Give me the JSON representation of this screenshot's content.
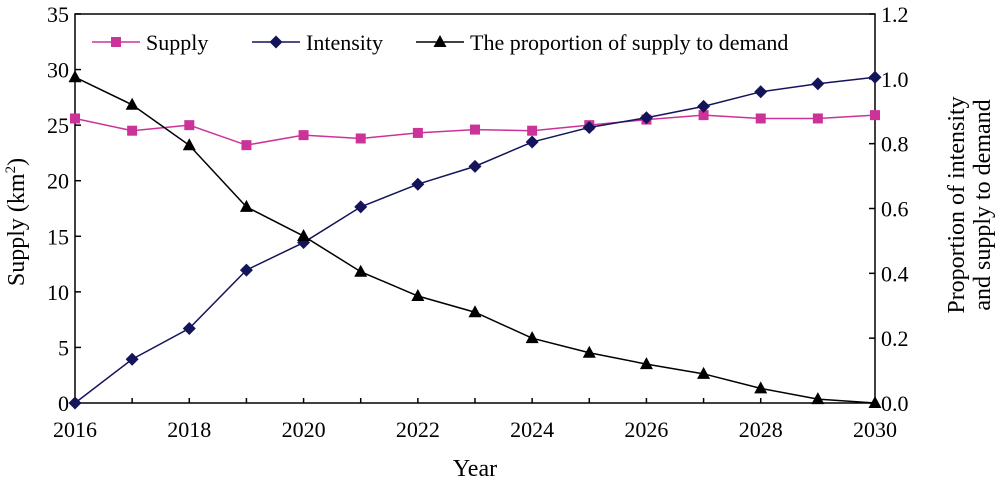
{
  "chart_data": {
    "type": "line",
    "xlabel": "Year",
    "ylabel_left": "Supply (km",
    "ylabel_left_sup": "2",
    "ylabel_left_close": ")",
    "ylabel_right_line1": "Proportion of intensity",
    "ylabel_right_line2": "and supply to demand",
    "x": [
      2016,
      2017,
      2018,
      2019,
      2020,
      2021,
      2022,
      2023,
      2024,
      2025,
      2026,
      2027,
      2028,
      2029,
      2030
    ],
    "x_ticks": [
      "2016",
      "2018",
      "2020",
      "2022",
      "2024",
      "2026",
      "2028",
      "2030"
    ],
    "ylim_left": [
      0,
      35
    ],
    "y_ticks_left": [
      "0",
      "5",
      "10",
      "15",
      "20",
      "25",
      "30",
      "35"
    ],
    "ylim_right": [
      0,
      1.2
    ],
    "y_ticks_right": [
      "0.0",
      "0.2",
      "0.4",
      "0.6",
      "0.8",
      "1.0",
      "1.2"
    ],
    "grid": false,
    "legend": "top",
    "series": [
      {
        "name": "Supply",
        "axis": "left",
        "marker": "square",
        "color": "#cc3399",
        "values": [
          25.6,
          24.5,
          25.0,
          23.2,
          24.1,
          23.8,
          24.3,
          24.6,
          24.5,
          25.0,
          25.5,
          25.9,
          25.6,
          25.6,
          25.9
        ]
      },
      {
        "name": "Intensity",
        "axis": "right",
        "marker": "diamond",
        "color": "#14145a",
        "values": [
          0.0,
          0.135,
          0.23,
          0.41,
          0.495,
          0.605,
          0.675,
          0.73,
          0.805,
          0.85,
          0.88,
          0.915,
          0.96,
          0.985,
          1.005
        ]
      },
      {
        "name": "The proportion of supply to demand",
        "axis": "right",
        "marker": "triangle",
        "color": "#000000",
        "values": [
          1.005,
          0.92,
          0.795,
          0.605,
          0.515,
          0.405,
          0.33,
          0.28,
          0.2,
          0.155,
          0.12,
          0.09,
          0.045,
          0.012,
          0.0
        ]
      }
    ]
  }
}
